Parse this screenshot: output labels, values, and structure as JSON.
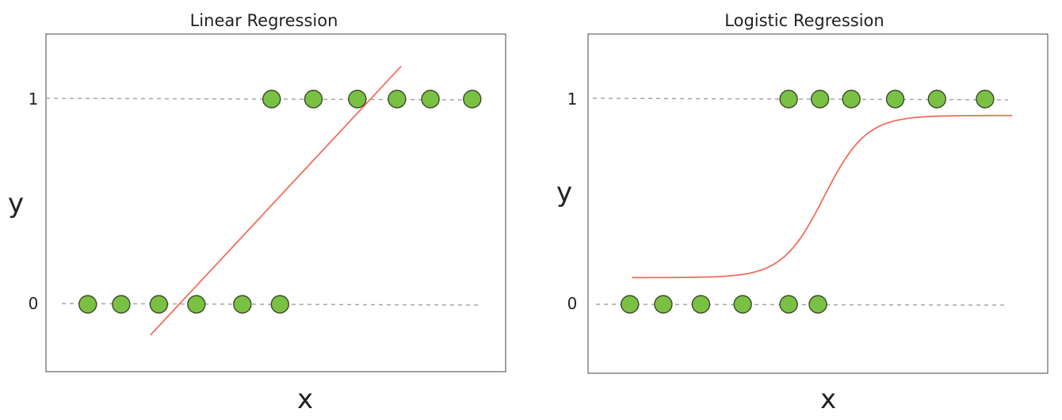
{
  "colors": {
    "point": "#7ac143",
    "fit": "#f26d5b",
    "guide": "#a6a6a6",
    "frame": "#444444"
  },
  "chart_data": [
    {
      "type": "scatter",
      "title": "Linear Regression",
      "xlabel": "x",
      "ylabel": "y",
      "yticks": [
        "0",
        "1"
      ],
      "xlim": [
        0,
        11
      ],
      "ylim": [
        -0.35,
        1.3
      ],
      "series": [
        {
          "values": [
            {
              "x": 1.0,
              "y": 0
            },
            {
              "x": 1.8,
              "y": 0
            },
            {
              "x": 2.7,
              "y": 0
            },
            {
              "x": 3.6,
              "y": 0
            },
            {
              "x": 4.7,
              "y": 0
            },
            {
              "x": 5.6,
              "y": 1.3e-09
            },
            {
              "x": 5.4,
              "y": 1
            },
            {
              "x": 6.4,
              "y": 1
            },
            {
              "x": 7.45,
              "y": 1
            },
            {
              "x": 8.4,
              "y": 1
            },
            {
              "x": 9.2,
              "y": 1
            },
            {
              "x": 10.2,
              "y": 1
            }
          ]
        }
      ],
      "fit": {
        "kind": "line",
        "points": [
          {
            "x": 2.5,
            "y": -0.15
          },
          {
            "x": 8.5,
            "y": 1.16
          }
        ]
      }
    },
    {
      "type": "scatter",
      "title": "Logistic Regression",
      "xlabel": "x",
      "ylabel": "y",
      "yticks": [
        "0",
        "1"
      ],
      "xlim": [
        0,
        11
      ],
      "ylim": [
        -0.35,
        1.3
      ],
      "series": [
        {
          "values": [
            {
              "x": 1.0,
              "y": 0
            },
            {
              "x": 1.8,
              "y": 0
            },
            {
              "x": 2.7,
              "y": 0
            },
            {
              "x": 3.7,
              "y": 0
            },
            {
              "x": 4.8,
              "y": 0
            },
            {
              "x": 5.5,
              "y": 0
            },
            {
              "x": 4.8,
              "y": 1
            },
            {
              "x": 5.55,
              "y": 1
            },
            {
              "x": 6.3,
              "y": 1
            },
            {
              "x": 7.35,
              "y": 1
            },
            {
              "x": 8.35,
              "y": 1
            },
            {
              "x": 9.5,
              "y": 1
            }
          ]
        }
      ],
      "fit": {
        "kind": "sigmoid",
        "x_start": 1.05,
        "x_end": 10.15,
        "lower": 0.13,
        "upper": 0.92,
        "midpoint": 5.65,
        "steepness": 2.0
      }
    }
  ]
}
